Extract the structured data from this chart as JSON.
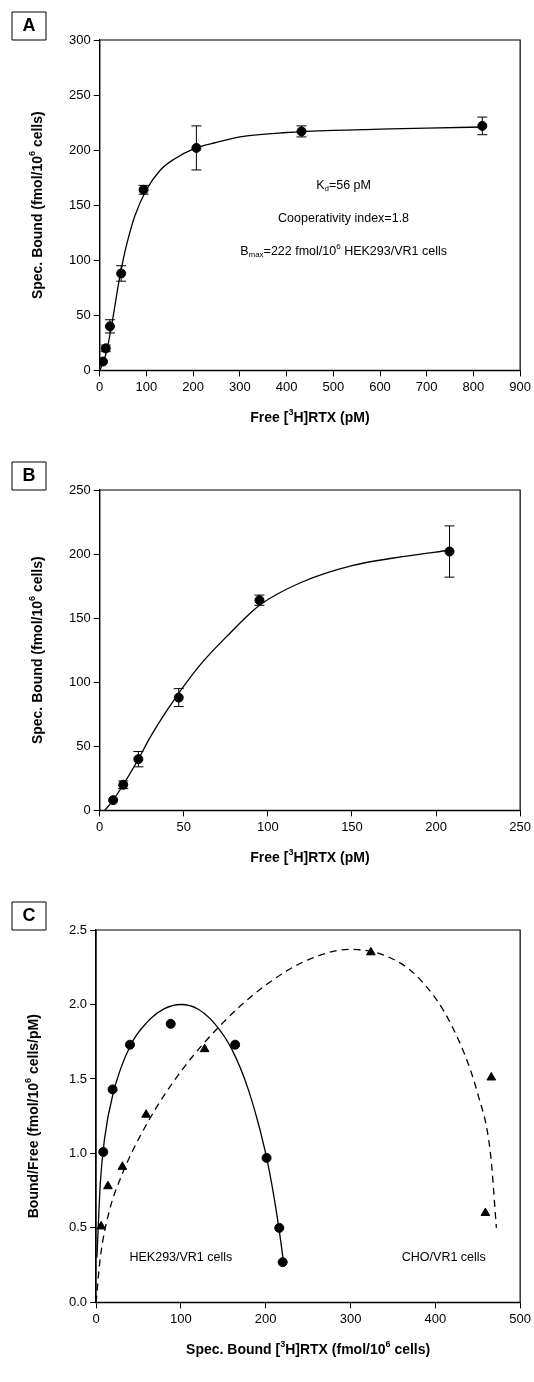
{
  "chart_data": [
    {
      "type": "scatter",
      "title": "A",
      "xlabel": "Free [$^{3}$H]RTX (pM)",
      "ylabel": "Spec. Bound (fmol/10$^{6}$ cells)",
      "xlim": [
        0,
        900
      ],
      "xticks": [
        0,
        100,
        200,
        300,
        400,
        500,
        600,
        700,
        800,
        900
      ],
      "ylim": [
        0,
        300
      ],
      "yticks": [
        0,
        50,
        100,
        150,
        200,
        250,
        300
      ],
      "annotations": [
        "K$_{d}$=56 pM",
        "Cooperativity index=1.8",
        "B$_{max}$=222 fmol/10$^{6}$ HEK293/VR1 cells"
      ],
      "series": [
        {
          "type": "scatter",
          "marker": "circle",
          "color": "#000000",
          "x": [
            7,
            13,
            22,
            46,
            94,
            207,
            432,
            819
          ],
          "values": [
            8,
            20,
            40,
            88,
            164,
            202,
            217,
            222
          ],
          "errors": [
            null,
            3,
            6,
            7,
            4,
            20,
            5,
            8
          ]
        },
        {
          "type": "line",
          "marker": "none",
          "line_style": "solid",
          "color": "#000000",
          "x": [
            0,
            10,
            20,
            30,
            40,
            50,
            60,
            75,
            100,
            130,
            160,
            200,
            250,
            300,
            400,
            500,
            600,
            700,
            820
          ],
          "values": [
            0,
            10,
            28,
            52,
            78,
            100,
            118,
            140,
            164,
            182,
            192,
            201,
            207,
            212,
            216,
            218,
            219,
            220,
            221
          ]
        }
      ]
    },
    {
      "type": "scatter",
      "title": "B",
      "xlabel": "Free [$^{3}$H]RTX (pM)",
      "ylabel": "Spec. Bound (fmol/10$^{6}$ cells)",
      "xlim": [
        0,
        250
      ],
      "xticks": [
        0,
        50,
        100,
        150,
        200,
        250
      ],
      "ylim": [
        0,
        250
      ],
      "yticks": [
        0,
        50,
        100,
        150,
        200,
        250
      ],
      "series": [
        {
          "type": "scatter",
          "marker": "circle",
          "color": "#000000",
          "x": [
            8,
            14,
            23,
            47,
            95,
            208
          ],
          "values": [
            8,
            20,
            40,
            88,
            164,
            202
          ],
          "errors": [
            null,
            3,
            6,
            7,
            4,
            20
          ]
        },
        {
          "type": "line",
          "marker": "none",
          "line_style": "solid",
          "color": "#000000",
          "x": [
            3,
            8,
            14,
            23,
            30,
            40,
            50,
            60,
            75,
            95,
            120,
            150,
            180,
            208
          ],
          "values": [
            0,
            8,
            20,
            40,
            57,
            78,
            97,
            114,
            135,
            160,
            178,
            191,
            198,
            203
          ]
        }
      ]
    },
    {
      "type": "scatter",
      "title": "C",
      "xlabel": "Spec. Bound [$^{3}$H]RTX (fmol/10$^{6}$ cells)",
      "ylabel": "Bound/Free (fmol/10$^{6}$ cells/pM)",
      "xlim": [
        0,
        500
      ],
      "xticks": [
        0,
        100,
        200,
        300,
        400,
        500
      ],
      "ylim": [
        0,
        2.5
      ],
      "yticks": [
        {
          "value": 0,
          "label": "0.0"
        },
        0.5,
        {
          "value": 1,
          "label": "1.0"
        },
        1.5,
        {
          "value": 2,
          "label": "2.0"
        },
        2.5
      ],
      "annotations": [
        "HEK293/VR1 cells",
        "CHO/VR1 cells"
      ],
      "series": [
        {
          "type": "scatter",
          "marker": "circle",
          "color": "#000000",
          "x": [
            8.5,
            19.5,
            40,
            88,
            164,
            201,
            216,
            220
          ],
          "values": [
            1.01,
            1.43,
            1.73,
            1.87,
            1.73,
            0.97,
            0.5,
            0.27
          ]
        },
        {
          "type": "scatter",
          "marker": "triangle",
          "color": "#000000",
          "x": [
            6,
            14,
            31,
            59,
            128,
            324,
            459,
            466
          ],
          "values": [
            0.51,
            0.78,
            0.91,
            1.26,
            1.7,
            2.35,
            0.6,
            1.51
          ]
        },
        {
          "type": "line",
          "marker": "none",
          "line_style": "solid",
          "color": "#000000",
          "x": [
            1,
            5,
            10,
            20,
            40,
            60,
            80,
            100,
            120,
            140,
            160,
            180,
            200,
            210,
            218,
            221
          ],
          "values": [
            0.3,
            0.8,
            1.1,
            1.4,
            1.72,
            1.88,
            1.97,
            2.0,
            1.97,
            1.87,
            1.7,
            1.42,
            1.0,
            0.7,
            0.4,
            0.27
          ]
        },
        {
          "type": "line",
          "marker": "none",
          "line_style": "dashed",
          "color": "#000000",
          "x": [
            0,
            5,
            15,
            30,
            60,
            100,
            150,
            200,
            250,
            300,
            340,
            380,
            420,
            450,
            465,
            472
          ],
          "values": [
            0,
            0.3,
            0.6,
            0.85,
            1.2,
            1.55,
            1.88,
            2.13,
            2.3,
            2.37,
            2.33,
            2.18,
            1.85,
            1.4,
            1.0,
            0.5
          ]
        }
      ]
    }
  ]
}
